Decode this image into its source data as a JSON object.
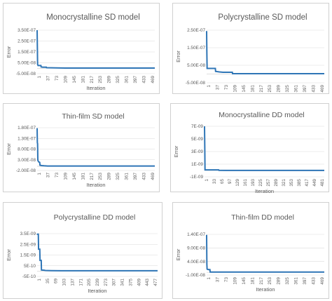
{
  "colors": {
    "series": "#2e75b6",
    "text": "#595959",
    "grid": "#d9d9d9",
    "border": "#d0d0d0"
  },
  "chart_data": [
    {
      "type": "line",
      "title": "Monocrystalline SD model",
      "xlabel": "Iteration",
      "ylabel": "Error",
      "yticks": [
        "3.50E-07",
        "2.50E-07",
        "1.50E-07",
        "5.00E-08",
        "-5.00E-08"
      ],
      "ytick_values": [
        3.5e-07,
        2.5e-07,
        1.5e-07,
        5e-08,
        -5e-08
      ],
      "ylim": [
        -5e-08,
        3.5e-07
      ],
      "xticks": [
        "1",
        "37",
        "73",
        "109",
        "145",
        "181",
        "217",
        "253",
        "289",
        "325",
        "361",
        "397",
        "433",
        "469"
      ],
      "xlim": [
        1,
        500
      ],
      "grid": true,
      "series": [
        {
          "x": [
            1,
            2,
            3,
            5,
            8,
            12,
            17,
            18,
            25,
            40,
            41,
            60,
            80,
            120,
            200,
            500
          ],
          "y": [
            3.5e-07,
            2e-07,
            3.5e-08,
            2.5e-08,
            2.5e-08,
            2.5e-08,
            2.5e-08,
            1.2e-08,
            1e-08,
            1e-08,
            5e-09,
            4e-09,
            3e-09,
            2e-09,
            2e-09,
            2e-09
          ]
        }
      ]
    },
    {
      "type": "line",
      "title": "Polycrystalline SD model",
      "xlabel": "Iteration",
      "ylabel": "Error",
      "yticks": [
        "2.50E-07",
        "1.50E-07",
        "5.00E-08",
        "-5.00E-08"
      ],
      "ytick_values": [
        2.5e-07,
        1.5e-07,
        5e-08,
        -5e-08
      ],
      "ylim": [
        -5e-08,
        2.5e-07
      ],
      "xticks": [
        "1",
        "37",
        "73",
        "109",
        "145",
        "181",
        "217",
        "253",
        "289",
        "325",
        "361",
        "397",
        "433",
        "469"
      ],
      "xlim": [
        1,
        500
      ],
      "grid": true,
      "series": [
        {
          "x": [
            1,
            2,
            3,
            5,
            10,
            20,
            38,
            39,
            55,
            70,
            110,
            111,
            200,
            500
          ],
          "y": [
            2.45e-07,
            1.2e-07,
            3.2e-08,
            3.2e-08,
            3.2e-08,
            3.2e-08,
            3.2e-08,
            1.5e-08,
            1.2e-08,
            1e-08,
            1e-08,
            2e-09,
            2e-09,
            2e-09
          ]
        }
      ]
    },
    {
      "type": "line",
      "title": "Thin-film SD model",
      "xlabel": "Iteration",
      "ylabel": "Error",
      "yticks": [
        "1.80E-07",
        "1.30E-07",
        "8.00E-08",
        "3.00E-08",
        "-2.00E-08"
      ],
      "ytick_values": [
        1.8e-07,
        1.3e-07,
        8e-08,
        3e-08,
        -2e-08
      ],
      "ylim": [
        -2e-08,
        1.8e-07
      ],
      "xticks": [
        "1",
        "37",
        "73",
        "109",
        "145",
        "181",
        "217",
        "253",
        "289",
        "325",
        "361",
        "397",
        "433",
        "469"
      ],
      "xlim": [
        1,
        500
      ],
      "grid": true,
      "series": [
        {
          "x": [
            1,
            2,
            3,
            4,
            6,
            8,
            12,
            13,
            20,
            30,
            45,
            100,
            500
          ],
          "y": [
            1.78e-07,
            1.1e-07,
            1.05e-07,
            2.8e-08,
            2.3e-08,
            2e-08,
            1.8e-08,
            5e-09,
            3e-09,
            2e-09,
            1e-09,
            1e-09,
            1e-09
          ]
        }
      ]
    },
    {
      "type": "line",
      "title": "Monocrystalline DD model",
      "xlabel": "Iteration",
      "ylabel": "Error",
      "yticks": [
        "7E-09",
        "5E-09",
        "3E-09",
        "1E-09",
        "-1E-09"
      ],
      "ytick_values": [
        7e-09,
        5e-09,
        3e-09,
        1e-09,
        -1e-09
      ],
      "ylim": [
        -1e-09,
        7e-09
      ],
      "xticks": [
        "1",
        "33",
        "65",
        "97",
        "129",
        "161",
        "193",
        "225",
        "257",
        "289",
        "321",
        "353",
        "385",
        "417",
        "449",
        "481"
      ],
      "xlim": [
        1,
        500
      ],
      "grid": true,
      "series": [
        {
          "x": [
            1,
            2,
            3,
            4,
            10,
            60,
            61,
            90,
            120,
            500
          ],
          "y": [
            7e-09,
            4e-09,
            1e-10,
            1e-10,
            1e-10,
            1e-10,
            3e-11,
            2e-11,
            1e-11,
            1e-11
          ]
        }
      ]
    },
    {
      "type": "line",
      "title": "Polycrystalline DD model",
      "xlabel": "Iteration",
      "ylabel": "Error",
      "yticks": [
        "3.5E-09",
        "2.5E-09",
        "1.5E-09",
        "5E-10",
        "-5E-10"
      ],
      "ytick_values": [
        3.5e-09,
        2.5e-09,
        1.5e-09,
        5e-10,
        -5e-10
      ],
      "ylim": [
        -5e-10,
        3.5e-09
      ],
      "xticks": [
        "1",
        "35",
        "69",
        "103",
        "137",
        "171",
        "205",
        "239",
        "273",
        "307",
        "341",
        "375",
        "409",
        "443",
        "477"
      ],
      "xlim": [
        1,
        500
      ],
      "grid": true,
      "series": [
        {
          "x": [
            1,
            2,
            4,
            6,
            7,
            10,
            12,
            13,
            18,
            19,
            30,
            35,
            45,
            60,
            100,
            500
          ],
          "y": [
            3.5e-09,
            3.45e-09,
            3.45e-09,
            3.45e-09,
            2.05e-09,
            2.05e-09,
            2.05e-09,
            1e-09,
            1e-09,
            1e-10,
            8e-11,
            6e-11,
            5e-11,
            4e-11,
            3e-11,
            3e-11
          ]
        }
      ]
    },
    {
      "type": "line",
      "title": "Thin-film DD model",
      "xlabel": "Iteration",
      "ylabel": "Error",
      "yticks": [
        "1.40E-07",
        "9.00E-08",
        "4.00E-08",
        "-1.00E-08"
      ],
      "ytick_values": [
        1.4e-07,
        9e-08,
        4e-08,
        -1e-08
      ],
      "ylim": [
        -1e-08,
        1.4e-07
      ],
      "xticks": [
        "1",
        "37",
        "73",
        "109",
        "145",
        "181",
        "217",
        "253",
        "289",
        "325",
        "361",
        "397",
        "433",
        "469"
      ],
      "xlim": [
        1,
        500
      ],
      "grid": true,
      "series": [
        {
          "x": [
            1,
            2,
            3,
            5,
            10,
            15,
            16,
            30,
            60,
            500
          ],
          "y": [
            1.38e-07,
            3e-08,
            1.2e-08,
            1.1e-08,
            1e-08,
            1e-08,
            1e-09,
            1e-09,
            1e-09,
            1e-09
          ]
        }
      ]
    }
  ]
}
